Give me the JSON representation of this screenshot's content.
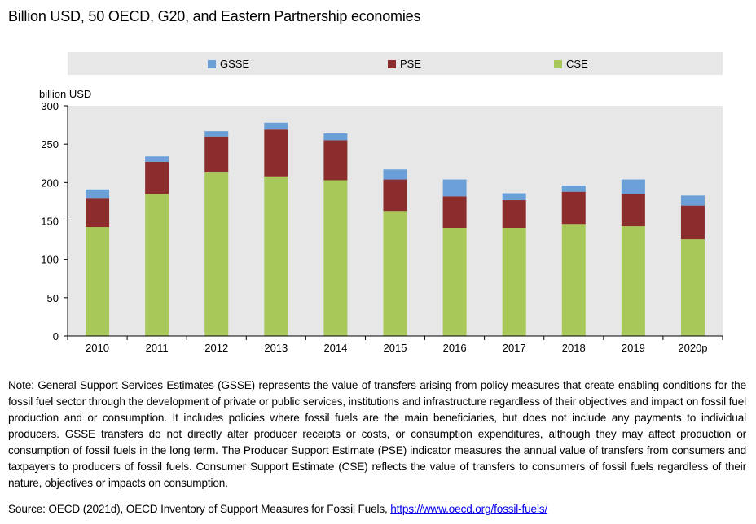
{
  "title": "Billion USD, 50 OECD, G20, and Eastern Partnership economies",
  "chart_data": {
    "type": "bar",
    "stacked": true,
    "categories": [
      "2010",
      "2011",
      "2012",
      "2013",
      "2014",
      "2015",
      "2016",
      "2017",
      "2018",
      "2019",
      "2020p"
    ],
    "series": [
      {
        "name": "CSE",
        "color": "#a8c85a",
        "values": [
          142,
          185,
          213,
          208,
          203,
          163,
          141,
          141,
          146,
          143,
          126
        ]
      },
      {
        "name": "PSE",
        "color": "#8b2d2d",
        "values": [
          38,
          42,
          47,
          61,
          52,
          41,
          41,
          36,
          42,
          42,
          44
        ]
      },
      {
        "name": "GSSE",
        "color": "#6a9fd8",
        "values": [
          11,
          7,
          7,
          9,
          9,
          13,
          22,
          9,
          8,
          19,
          13
        ]
      }
    ],
    "legend_order": [
      "GSSE",
      "PSE",
      "CSE"
    ],
    "legend_position": "top",
    "ylabel": "billion USD",
    "ylim": [
      0,
      300
    ],
    "yticks": [
      0,
      50,
      100,
      150,
      200,
      250,
      300
    ],
    "grid": false
  },
  "note": "Note: General Support Services Estimates (GSSE) represents the value of transfers arising from policy measures that create enabling conditions for the fossil fuel sector through the development of private or public services, institutions and infrastructure regardless of their objectives and impact on fossil fuel production and or consumption. It includes policies where fossil fuels are the main beneficiaries, but does not include any payments to individual producers. GSSE transfers do not directly alter producer receipts or costs, or consumption expenditures, although they may affect production or consumption of fossil fuels in the long term. The Producer Support Estimate (PSE) indicator measures the annual value of transfers from consumers and taxpayers to producers of fossil fuels. Consumer Support Estimate (CSE) reflects the value of transfers to consumers of fossil fuels regardless of their nature, objectives or impacts on consumption.",
  "source": {
    "text": "Source: OECD (2021d), OECD Inventory of Support Measures for Fossil Fuels, ",
    "link_text": "https://www.oecd.org/fossil-fuels/"
  }
}
